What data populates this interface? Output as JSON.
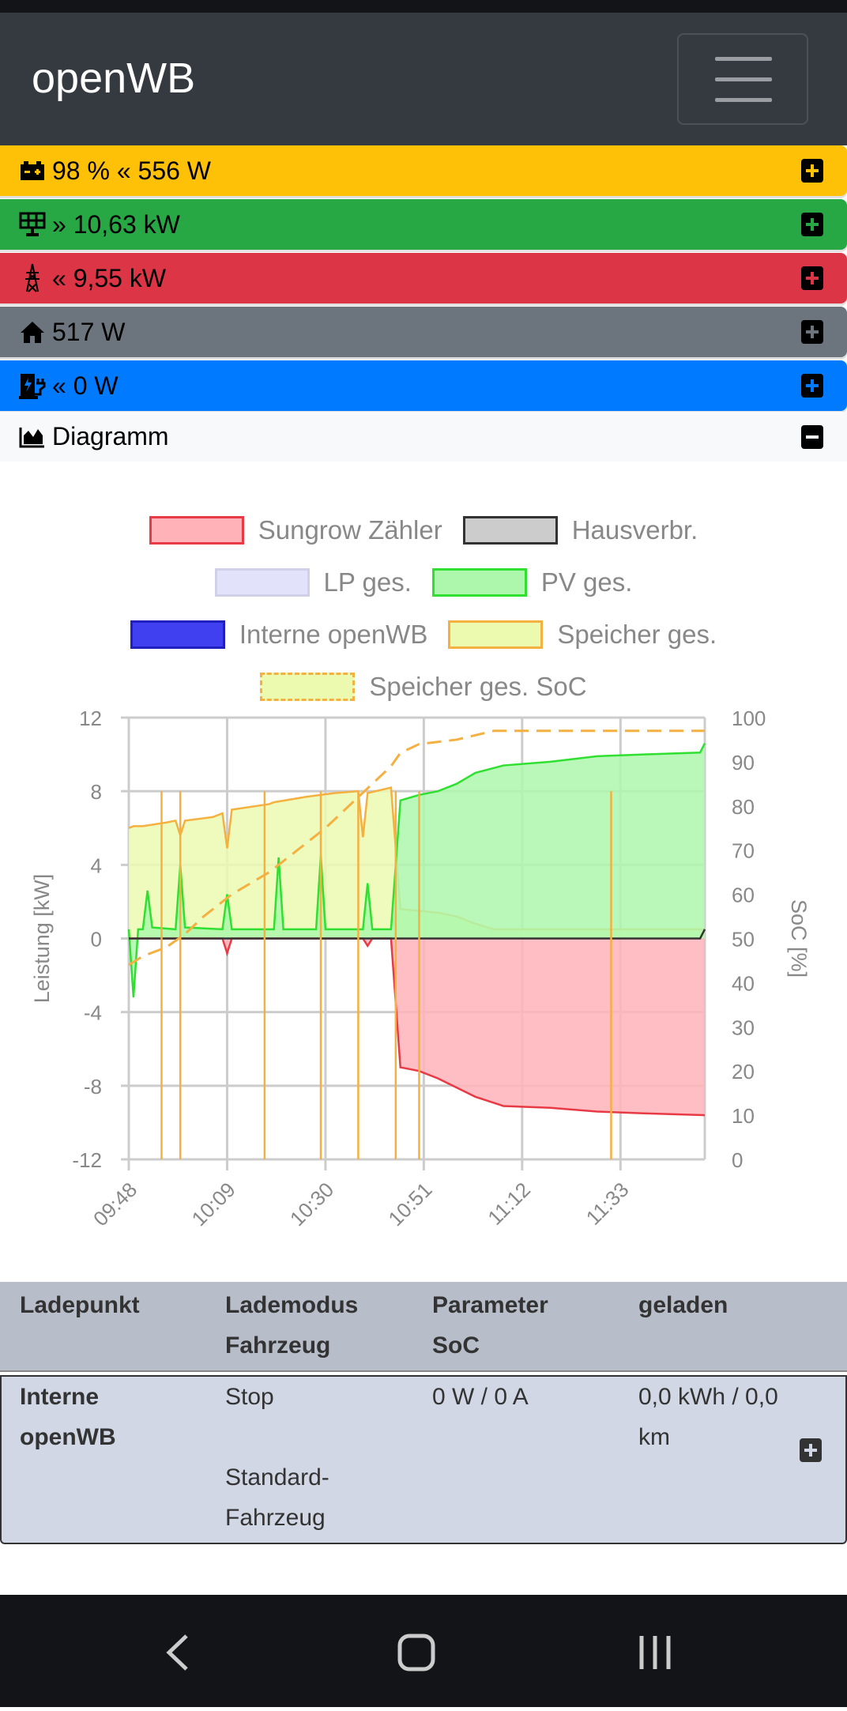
{
  "navbar": {
    "title": "openWB"
  },
  "rows": [
    {
      "id": "battery",
      "icon": "battery-icon",
      "text": "98 % « 556 W",
      "color": "#ffc107",
      "toggle": "plus"
    },
    {
      "id": "pv",
      "icon": "solar-panel-icon",
      "text": "» 10,63 kW",
      "color": "#28a745",
      "toggle": "plus"
    },
    {
      "id": "grid",
      "icon": "power-tower-icon",
      "text": "« 9,55 kW",
      "color": "#dc3545",
      "toggle": "plus"
    },
    {
      "id": "house",
      "icon": "house-icon",
      "text": "517 W",
      "color": "#6c757d",
      "toggle": "plus"
    },
    {
      "id": "chargepoint",
      "icon": "charging-station-icon",
      "text": "« 0 W",
      "color": "#007bff",
      "toggle": "plus"
    },
    {
      "id": "diagram",
      "icon": "area-chart-icon",
      "text": "Diagramm",
      "color": "#f8f9fa",
      "toggle": "minus"
    }
  ],
  "chart_data": {
    "type": "area",
    "legend": [
      {
        "name": "Sungrow Zähler",
        "fill": "#ffb3b8",
        "stroke": "#e83a44"
      },
      {
        "name": "Hausverbr.",
        "fill": "#cccccc",
        "stroke": "#333333"
      },
      {
        "name": "LP ges.",
        "fill": "#e2e2fb",
        "stroke": "#d0d0e8"
      },
      {
        "name": "PV ges.",
        "fill": "#adf7ad",
        "stroke": "#30e030"
      },
      {
        "name": "Interne openWB",
        "fill": "#4040f0",
        "stroke": "#2020c0"
      },
      {
        "name": "Speicher ges.",
        "fill": "#ecfab0",
        "stroke": "#f4b040"
      },
      {
        "name": "Speicher ges. SoC",
        "fill": "#ecfab0",
        "stroke": "#f4b040",
        "dashed": true
      }
    ],
    "x_unit": "minutes since 09:48",
    "x_range": [
      0,
      123
    ],
    "x_ticks": [
      {
        "v": 0,
        "label": "09:48"
      },
      {
        "v": 21,
        "label": "10:09"
      },
      {
        "v": 42,
        "label": "10:30"
      },
      {
        "v": 63,
        "label": "10:51"
      },
      {
        "v": 84,
        "label": "11:12"
      },
      {
        "v": 105,
        "label": "11:33"
      }
    ],
    "ylabel": "Leistung [kW]",
    "ylim": [
      -12,
      12
    ],
    "yticks": [
      12,
      8,
      4,
      0,
      -4,
      -8,
      -12
    ],
    "y2label": "SoC [%]",
    "y2lim": [
      0,
      100
    ],
    "y2ticks": [
      100,
      90,
      80,
      70,
      60,
      50,
      40,
      30,
      20,
      10,
      0
    ],
    "series": {
      "speicher": [
        [
          0,
          6
        ],
        [
          1,
          6.1
        ],
        [
          3,
          6.1
        ],
        [
          8,
          6.3
        ],
        [
          10,
          6.4
        ],
        [
          11,
          5.6
        ],
        [
          12,
          6.4
        ],
        [
          18,
          6.6
        ],
        [
          20,
          6.8
        ],
        [
          21,
          4.9
        ],
        [
          22,
          7
        ],
        [
          30,
          7.3
        ],
        [
          31,
          7.4
        ],
        [
          38,
          7.7
        ],
        [
          44,
          7.9
        ],
        [
          49,
          8
        ],
        [
          50,
          5.5
        ],
        [
          51,
          7.9
        ],
        [
          56,
          8.2
        ],
        [
          58,
          1.6
        ],
        [
          66,
          1.4
        ],
        [
          70,
          1.2
        ],
        [
          74,
          0.8
        ],
        [
          78,
          0.5
        ],
        [
          123,
          0.5
        ]
      ],
      "pv": [
        [
          0,
          0.5
        ],
        [
          1,
          -3.2
        ],
        [
          2,
          0.5
        ],
        [
          3,
          0.5
        ],
        [
          4,
          2.6
        ],
        [
          5,
          0.6
        ],
        [
          10,
          0.5
        ],
        [
          11,
          4
        ],
        [
          12,
          0.6
        ],
        [
          20,
          0.5
        ],
        [
          21,
          2.4
        ],
        [
          22,
          0.5
        ],
        [
          31,
          0.5
        ],
        [
          32,
          4.4
        ],
        [
          33,
          0.5
        ],
        [
          40,
          0.5
        ],
        [
          41,
          4.5
        ],
        [
          42,
          0.5
        ],
        [
          50,
          0.5
        ],
        [
          51,
          3
        ],
        [
          52,
          0.5
        ],
        [
          56,
          0.5
        ],
        [
          58,
          7.5
        ],
        [
          62,
          7.8
        ],
        [
          66,
          8
        ],
        [
          70,
          8.4
        ],
        [
          74,
          9
        ],
        [
          80,
          9.4
        ],
        [
          90,
          9.6
        ],
        [
          100,
          9.9
        ],
        [
          110,
          10
        ],
        [
          122,
          10.1
        ],
        [
          123,
          10.6
        ]
      ],
      "grid": [
        [
          0,
          0
        ],
        [
          20,
          0
        ],
        [
          21,
          -0.8
        ],
        [
          22,
          0
        ],
        [
          50,
          0
        ],
        [
          51,
          -0.4
        ],
        [
          52,
          0
        ],
        [
          56,
          0
        ],
        [
          58,
          -7
        ],
        [
          62,
          -7.2
        ],
        [
          66,
          -7.6
        ],
        [
          70,
          -8.1
        ],
        [
          74,
          -8.6
        ],
        [
          80,
          -9.1
        ],
        [
          90,
          -9.2
        ],
        [
          100,
          -9.4
        ],
        [
          110,
          -9.5
        ],
        [
          123,
          -9.6
        ]
      ],
      "house": [
        [
          0,
          0
        ],
        [
          122,
          0
        ],
        [
          123,
          0.5
        ]
      ],
      "soc": [
        [
          0,
          44
        ],
        [
          3,
          46
        ],
        [
          8,
          48
        ],
        [
          12,
          51
        ],
        [
          16,
          55
        ],
        [
          22,
          60
        ],
        [
          30,
          65
        ],
        [
          36,
          70
        ],
        [
          42,
          75
        ],
        [
          48,
          81
        ],
        [
          52,
          85
        ],
        [
          56,
          89
        ],
        [
          58,
          92
        ],
        [
          62,
          94
        ],
        [
          70,
          95
        ],
        [
          78,
          97
        ],
        [
          123,
          97
        ]
      ],
      "battery_drops": [
        7,
        11,
        29,
        41,
        49,
        57,
        62,
        103
      ]
    }
  },
  "table": {
    "headers": [
      [
        "Ladepunkt"
      ],
      [
        "Lademodus",
        "Fahrzeug"
      ],
      [
        "Parameter",
        "SoC"
      ],
      [
        "geladen"
      ]
    ],
    "rows": [
      {
        "ladepunkt": [
          "Interne",
          "openWB"
        ],
        "modus": "Stop",
        "fahrzeug": [
          "Standard-",
          "Fahrzeug"
        ],
        "parameter": "0 W / 0 A",
        "geladen": [
          "0,0 kWh / 0,0",
          "km"
        ]
      }
    ]
  }
}
